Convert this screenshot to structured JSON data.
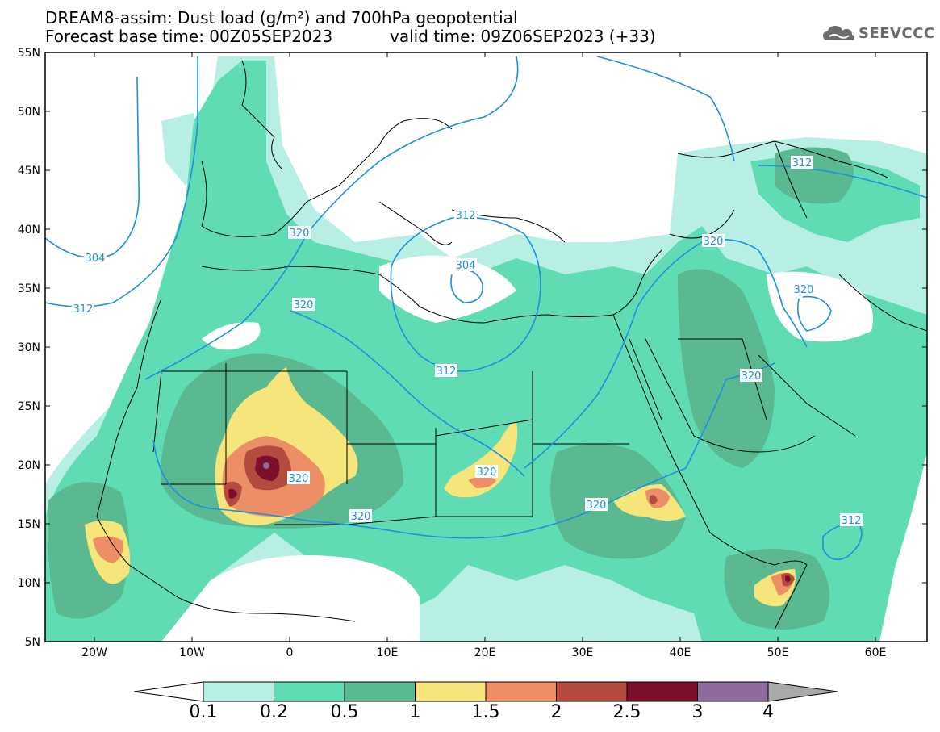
{
  "title_line1": "DREAM8-assim: Dust load (g/m²) and 700hPa geopotential",
  "title_line2": "Forecast base time: 00Z05SEP2023",
  "valid_time": "valid time: 09Z06SEP2023 (+33)",
  "logo": {
    "text": "SEEVCCC",
    "icon": "cloud-logo-icon"
  },
  "axes": {
    "lat_labels": [
      "55N",
      "50N",
      "45N",
      "40N",
      "35N",
      "30N",
      "25N",
      "20N",
      "15N",
      "10N",
      "5N"
    ],
    "lon_labels": [
      "20W",
      "10W",
      "0",
      "10E",
      "20E",
      "30E",
      "40E",
      "50E",
      "60E"
    ]
  },
  "contour_labels": [
    {
      "value": "320"
    },
    {
      "value": "312"
    },
    {
      "value": "304"
    },
    {
      "value": "304"
    },
    {
      "value": "312"
    },
    {
      "value": "320"
    },
    {
      "value": "312"
    },
    {
      "value": "320"
    },
    {
      "value": "320"
    },
    {
      "value": "320"
    },
    {
      "value": "320"
    },
    {
      "value": "320"
    },
    {
      "value": "320"
    },
    {
      "value": "312"
    },
    {
      "value": "320"
    },
    {
      "value": "312"
    }
  ],
  "colorbar": {
    "labels": [
      "0.1",
      "0.2",
      "0.5",
      "1",
      "1.5",
      "2",
      "2.5",
      "3",
      "4"
    ],
    "colors": [
      "#b8efe4",
      "#5fdcb3",
      "#5bb992",
      "#f5e57a",
      "#ec8f67",
      "#b54b3e",
      "#7c0f2a",
      "#8f6a9f",
      "#a9a9a9"
    ]
  },
  "colors": {
    "ocean": "#ffffff",
    "dust_light": "#b8efe4",
    "dust_mid": "#5fdcb3",
    "dust_dark": "#5bb992",
    "dust_yellow": "#f5e57a",
    "dust_orange": "#ec8f67",
    "dust_red": "#b54b3e",
    "dust_maroon": "#7c0f2a",
    "contour": "#1e8fe0"
  }
}
